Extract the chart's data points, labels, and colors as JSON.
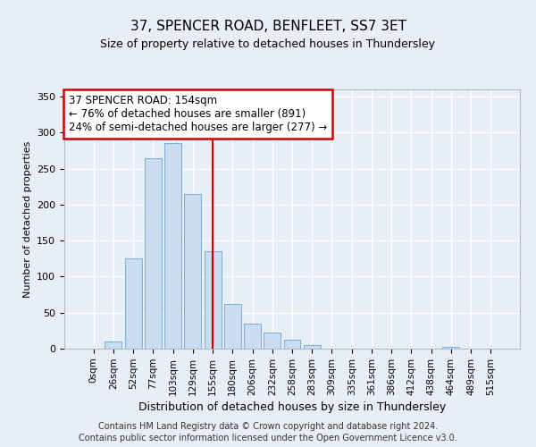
{
  "title": "37, SPENCER ROAD, BENFLEET, SS7 3ET",
  "subtitle": "Size of property relative to detached houses in Thundersley",
  "xlabel": "Distribution of detached houses by size in Thundersley",
  "ylabel": "Number of detached properties",
  "bar_labels": [
    "0sqm",
    "26sqm",
    "52sqm",
    "77sqm",
    "103sqm",
    "129sqm",
    "155sqm",
    "180sqm",
    "206sqm",
    "232sqm",
    "258sqm",
    "283sqm",
    "309sqm",
    "335sqm",
    "361sqm",
    "386sqm",
    "412sqm",
    "438sqm",
    "464sqm",
    "489sqm",
    "515sqm"
  ],
  "bar_values": [
    0,
    10,
    125,
    265,
    285,
    215,
    135,
    62,
    35,
    22,
    12,
    5,
    0,
    0,
    0,
    0,
    0,
    0,
    2,
    0,
    0
  ],
  "bar_color": "#c9dcf0",
  "bar_edge_color": "#7aadd4",
  "ylim": [
    0,
    360
  ],
  "yticks": [
    0,
    50,
    100,
    150,
    200,
    250,
    300,
    350
  ],
  "vline_x": 6,
  "vline_color": "#cc0000",
  "annotation_line1": "37 SPENCER ROAD: 154sqm",
  "annotation_line2": "← 76% of detached houses are smaller (891)",
  "annotation_line3": "24% of semi-detached houses are larger (277) →",
  "annotation_box_color": "#ffffff",
  "annotation_box_edge_color": "#cc0000",
  "footer_line1": "Contains HM Land Registry data © Crown copyright and database right 2024.",
  "footer_line2": "Contains public sector information licensed under the Open Government Licence v3.0.",
  "bg_color": "#e8eef5",
  "plot_bg_color": "#e8eef5",
  "grid_color": "#ffffff"
}
